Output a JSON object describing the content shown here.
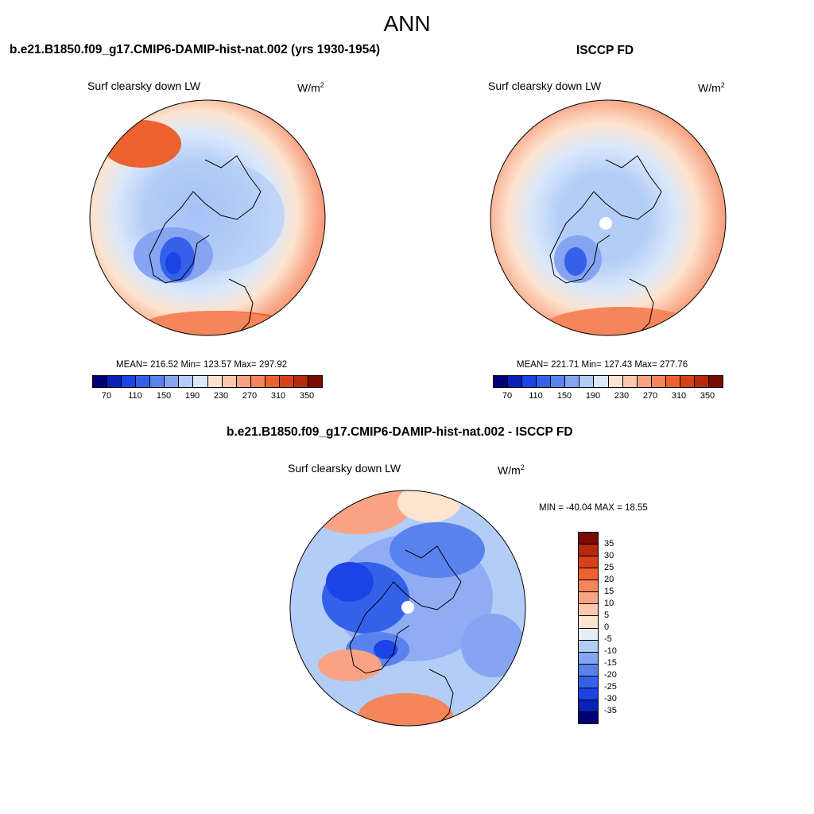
{
  "figure": {
    "season": "ANN",
    "left_panel": {
      "title": "b.e21.B1850.f09_g17.CMIP6-DAMIP-hist-nat.002 (yrs 1930-1954)",
      "variable": "Surf clearsky down LW",
      "units_base": "W/m",
      "units_exp": "2",
      "stats": "MEAN= 216.52  Min= 123.57  Max= 297.92"
    },
    "right_panel": {
      "title": "ISCCP FD",
      "variable": "Surf clearsky down LW",
      "units_base": "W/m",
      "units_exp": "2",
      "stats": "MEAN= 221.71  Min= 127.43  Max= 277.76"
    },
    "diff_panel": {
      "title": "b.e21.B1850.f09_g17.CMIP6-DAMIP-hist-nat.002 - ISCCP FD",
      "variable": "Surf clearsky down LW",
      "units": "W/m",
      "stats": "MIN = -40.04 MAX =  18.55"
    }
  },
  "colorbar_abs": {
    "colors": [
      "#00007a",
      "#0a21b8",
      "#1c43e6",
      "#3561ea",
      "#5a82ef",
      "#86a4f2",
      "#b3cdf7",
      "#dbe8fb",
      "#fde4cf",
      "#fcc8ad",
      "#f8a384",
      "#f5855b",
      "#ee6230",
      "#d8401a",
      "#b52a0c",
      "#7a0a04"
    ],
    "tick_labels": [
      "70",
      "110",
      "150",
      "190",
      "230",
      "270",
      "310",
      "350"
    ]
  },
  "colorbar_diff": {
    "colors": [
      "#7a0a04",
      "#b52a0c",
      "#d8401a",
      "#ee6230",
      "#f5855b",
      "#f8a384",
      "#fcc8ad",
      "#fde4cf",
      "#e8eef8",
      "#b3cdf7",
      "#86a4f2",
      "#5a82ef",
      "#3561ea",
      "#1c43e6",
      "#0a21b8",
      "#00007a"
    ],
    "tick_labels": [
      "35",
      "30",
      "25",
      "20",
      "15",
      "10",
      "5",
      "0",
      "-5",
      "-10",
      "-15",
      "-20",
      "-25",
      "-30",
      "-35"
    ]
  }
}
